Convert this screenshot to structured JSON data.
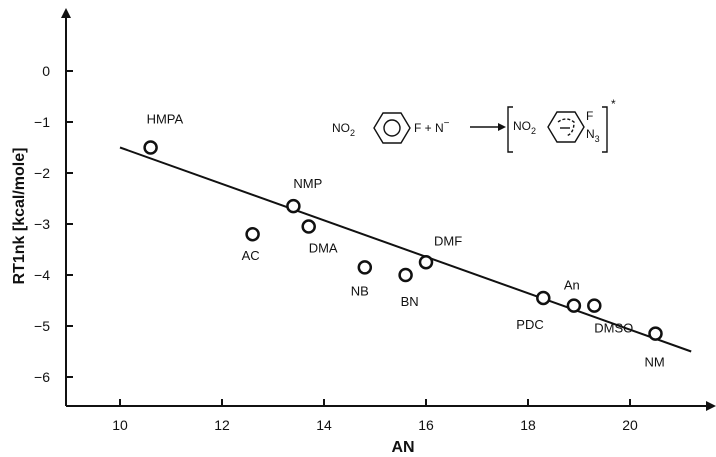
{
  "chart_data": {
    "type": "scatter",
    "xlabel": "AN",
    "ylabel": "RT1nk [kcal/mole]",
    "xlim": [
      9,
      21.5
    ],
    "ylim": [
      -6.6,
      0.8
    ],
    "x_ticks": [
      10,
      12,
      14,
      16,
      18,
      20
    ],
    "y_ticks": [
      0,
      -1,
      -2,
      -3,
      -4,
      -5,
      -6
    ],
    "points": [
      {
        "label": "HMPA",
        "x": 10.6,
        "y": -1.5
      },
      {
        "label": "AC",
        "x": 12.6,
        "y": -3.2
      },
      {
        "label": "NMP",
        "x": 13.4,
        "y": -2.65
      },
      {
        "label": "DMA",
        "x": 13.7,
        "y": -3.05
      },
      {
        "label": "NB",
        "x": 14.8,
        "y": -3.85
      },
      {
        "label": "BN",
        "x": 15.6,
        "y": -4.0
      },
      {
        "label": "DMF",
        "x": 16.0,
        "y": -3.75
      },
      {
        "label": "PDC",
        "x": 18.3,
        "y": -4.45
      },
      {
        "label": "An",
        "x": 18.9,
        "y": -4.6
      },
      {
        "label": "DMSO",
        "x": 19.3,
        "y": -4.6
      },
      {
        "label": "NM",
        "x": 20.5,
        "y": -5.15
      }
    ],
    "fit_line": {
      "x": [
        10.0,
        21.2
      ],
      "y": [
        -1.5,
        -5.5
      ]
    },
    "grid": false,
    "legend": "none",
    "annotation": {
      "reactant_group": "NO",
      "reactant_subscript": "2",
      "plus_text": "F + N",
      "anion_mark": "−",
      "product_group": "NO",
      "product_subscript": "2",
      "product_f": "F",
      "product_n": "N",
      "product_n_subscript": "3",
      "charge_mark": "*"
    }
  }
}
